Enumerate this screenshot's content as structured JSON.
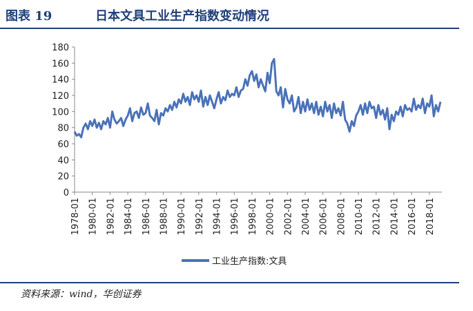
{
  "header": {
    "label": "图表 19",
    "title": "日本文具工业生产指数变动情况"
  },
  "source": "资料来源：wind，华创证券",
  "chart_data": {
    "type": "line",
    "xlim": [
      "1978-01",
      "2019-06"
    ],
    "ylim": [
      0,
      180
    ],
    "yticks": [
      0,
      20,
      40,
      60,
      80,
      100,
      120,
      140,
      160,
      180
    ],
    "xticks": [
      "1978-01",
      "1980-01",
      "1982-01",
      "1984-01",
      "1986-01",
      "1988-01",
      "1990-01",
      "1992-01",
      "1994-01",
      "1996-01",
      "1998-01",
      "2000-01",
      "2002-01",
      "2004-01",
      "2006-01",
      "2008-01",
      "2010-01",
      "2012-01",
      "2014-01",
      "2016-01",
      "2018-01"
    ],
    "legend": "bottom",
    "x": [
      "1978-01",
      "1978-04",
      "1978-07",
      "1978-10",
      "1979-01",
      "1979-04",
      "1979-07",
      "1979-10",
      "1980-01",
      "1980-04",
      "1980-07",
      "1980-10",
      "1981-01",
      "1981-04",
      "1981-07",
      "1981-10",
      "1982-01",
      "1982-04",
      "1982-07",
      "1982-10",
      "1983-01",
      "1983-04",
      "1983-07",
      "1983-10",
      "1984-01",
      "1984-04",
      "1984-07",
      "1984-10",
      "1985-01",
      "1985-04",
      "1985-07",
      "1985-10",
      "1986-01",
      "1986-04",
      "1986-07",
      "1986-10",
      "1987-01",
      "1987-04",
      "1987-07",
      "1987-10",
      "1988-01",
      "1988-04",
      "1988-07",
      "1988-10",
      "1989-01",
      "1989-04",
      "1989-07",
      "1989-10",
      "1990-01",
      "1990-04",
      "1990-07",
      "1990-10",
      "1991-01",
      "1991-04",
      "1991-07",
      "1991-10",
      "1992-01",
      "1992-04",
      "1992-07",
      "1992-10",
      "1993-01",
      "1993-04",
      "1993-07",
      "1993-10",
      "1994-01",
      "1994-04",
      "1994-07",
      "1994-10",
      "1995-01",
      "1995-04",
      "1995-07",
      "1995-10",
      "1996-01",
      "1996-04",
      "1996-07",
      "1996-10",
      "1997-01",
      "1997-04",
      "1997-07",
      "1997-10",
      "1998-01",
      "1998-04",
      "1998-07",
      "1998-10",
      "1999-01",
      "1999-04",
      "1999-07",
      "1999-10",
      "2000-01",
      "2000-04",
      "2000-07",
      "2000-10",
      "2001-01",
      "2001-04",
      "2001-07",
      "2001-10",
      "2002-01",
      "2002-04",
      "2002-07",
      "2002-10",
      "2003-01",
      "2003-04",
      "2003-07",
      "2003-10",
      "2004-01",
      "2004-04",
      "2004-07",
      "2004-10",
      "2005-01",
      "2005-04",
      "2005-07",
      "2005-10",
      "2006-01",
      "2006-04",
      "2006-07",
      "2006-10",
      "2007-01",
      "2007-04",
      "2007-07",
      "2007-10",
      "2008-01",
      "2008-04",
      "2008-07",
      "2008-10",
      "2009-01",
      "2009-04",
      "2009-07",
      "2009-10",
      "2010-01",
      "2010-04",
      "2010-07",
      "2010-10",
      "2011-01",
      "2011-04",
      "2011-07",
      "2011-10",
      "2012-01",
      "2012-04",
      "2012-07",
      "2012-10",
      "2013-01",
      "2013-04",
      "2013-07",
      "2013-10",
      "2014-01",
      "2014-04",
      "2014-07",
      "2014-10",
      "2015-01",
      "2015-04",
      "2015-07",
      "2015-10",
      "2016-01",
      "2016-04",
      "2016-07",
      "2016-10",
      "2017-01",
      "2017-04",
      "2017-07",
      "2017-10",
      "2018-01",
      "2018-04",
      "2018-07",
      "2018-10",
      "2019-01",
      "2019-04"
    ],
    "series": [
      {
        "name": "工业生产指数:文具",
        "color": "#4a72b8",
        "values": [
          75,
          70,
          72,
          68,
          80,
          85,
          78,
          88,
          82,
          90,
          80,
          86,
          78,
          88,
          84,
          92,
          80,
          100,
          90,
          85,
          88,
          92,
          82,
          90,
          95,
          104,
          88,
          98,
          100,
          92,
          105,
          96,
          98,
          110,
          95,
          92,
          88,
          102,
          84,
          98,
          95,
          104,
          100,
          108,
          102,
          112,
          105,
          115,
          110,
          122,
          112,
          118,
          108,
          124,
          115,
          120,
          112,
          126,
          106,
          118,
          108,
          120,
          112,
          104,
          115,
          124,
          110,
          118,
          114,
          126,
          118,
          122,
          120,
          130,
          118,
          126,
          128,
          140,
          132,
          145,
          150,
          138,
          146,
          130,
          140,
          132,
          125,
          148,
          135,
          160,
          165,
          125,
          120,
          130,
          105,
          128,
          115,
          110,
          120,
          100,
          105,
          118,
          98,
          112,
          100,
          115,
          102,
          110,
          98,
          112,
          96,
          106,
          94,
          112,
          100,
          108,
          92,
          110,
          98,
          104,
          95,
          112,
          90,
          85,
          75,
          88,
          82,
          95,
          100,
          108,
          96,
          110,
          98,
          112,
          104,
          106,
          92,
          108,
          96,
          102,
          90,
          104,
          78,
          96,
          88,
          100,
          96,
          106,
          94,
          108,
          102,
          104,
          100,
          116,
          102,
          108,
          104,
          116,
          98,
          110,
          106,
          120,
          94,
          108,
          100,
          112
        ]
      }
    ]
  }
}
